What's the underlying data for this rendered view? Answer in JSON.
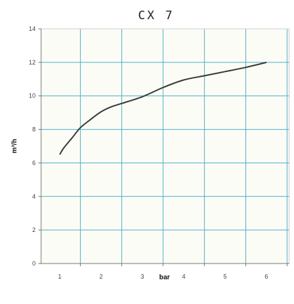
{
  "chart_data": {
    "type": "line",
    "title": "CX 7",
    "xlabel": "bar",
    "ylabel": "m³/h",
    "x_ticks": [
      "1",
      "2",
      "3",
      "4",
      "5",
      "6"
    ],
    "y_ticks": [
      "0",
      "2",
      "4",
      "6",
      "8",
      "10",
      "12",
      "14"
    ],
    "xlim": [
      0.55,
      6.55
    ],
    "ylim": [
      0,
      14
    ],
    "grid": true,
    "legend": "none",
    "series": [
      {
        "x": [
          1.0,
          1.1,
          1.3,
          1.5,
          1.75,
          2.0,
          2.25,
          2.5,
          3.0,
          3.5,
          4.0,
          4.5,
          5.0,
          5.5,
          6.0
        ],
        "y": [
          6.5,
          6.9,
          7.5,
          8.1,
          8.6,
          9.05,
          9.35,
          9.55,
          9.95,
          10.5,
          10.95,
          11.2,
          11.45,
          11.7,
          12.0
        ]
      }
    ],
    "colors": {
      "line": "#3a3a3a",
      "grid": "#4fb0c6",
      "plot_bg": "#fcfcf6",
      "axis": "#777777"
    }
  }
}
